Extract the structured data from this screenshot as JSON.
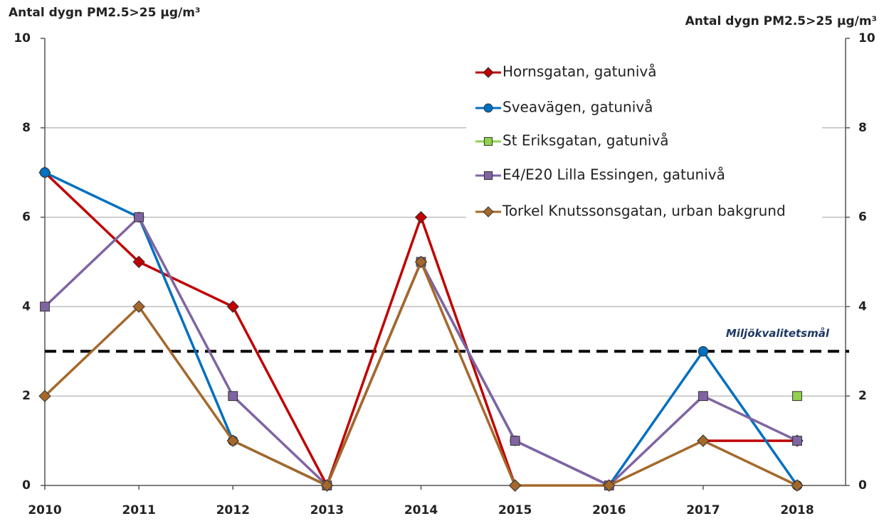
{
  "chart_data": {
    "type": "line",
    "y_label": "Antal dygn PM2.5>25 µg/m³",
    "y2_label": "Antal dygn PM2.5>25 µg/m³",
    "categories": [
      "2010",
      "2011",
      "2012",
      "2013",
      "2014",
      "2015",
      "2016",
      "2017",
      "2018"
    ],
    "ylim": [
      0,
      10
    ],
    "yticks": [
      0,
      2,
      4,
      6,
      8,
      10
    ],
    "y2lim": [
      0,
      10
    ],
    "y2ticks": [
      0,
      2,
      4,
      6,
      8,
      10
    ],
    "grid": true,
    "legend": "top-right",
    "series": [
      {
        "name": "Hornsgatan, gatunivå",
        "color": "#c00000",
        "marker": "diamond",
        "line": true,
        "values": [
          7,
          5,
          4,
          0,
          6,
          0,
          null,
          1,
          1
        ]
      },
      {
        "name": "Sveavägen, gatunivå",
        "color": "#0070c0",
        "marker": "circle",
        "line": true,
        "values": [
          7,
          6,
          1,
          0,
          5,
          1,
          0,
          3,
          0
        ]
      },
      {
        "name": "St Eriksgatan,  gatunivå",
        "color": "#92d050",
        "marker": "square",
        "line": false,
        "values": [
          null,
          null,
          null,
          null,
          null,
          null,
          null,
          null,
          2
        ]
      },
      {
        "name": "E4/E20 Lilla Essingen, gatunivå",
        "color": "#8064a2",
        "marker": "square",
        "line": true,
        "values": [
          4,
          6,
          2,
          0,
          5,
          1,
          0,
          2,
          1
        ]
      },
      {
        "name": "Torkel Knutssonsgatan, urban bakgrund",
        "color": "#a5682a",
        "marker": "diamond",
        "line": true,
        "values": [
          2,
          4,
          1,
          0,
          5,
          0,
          0,
          1,
          0
        ]
      }
    ],
    "target": {
      "label": "Miljökvalitetsmål",
      "value": 3
    }
  }
}
